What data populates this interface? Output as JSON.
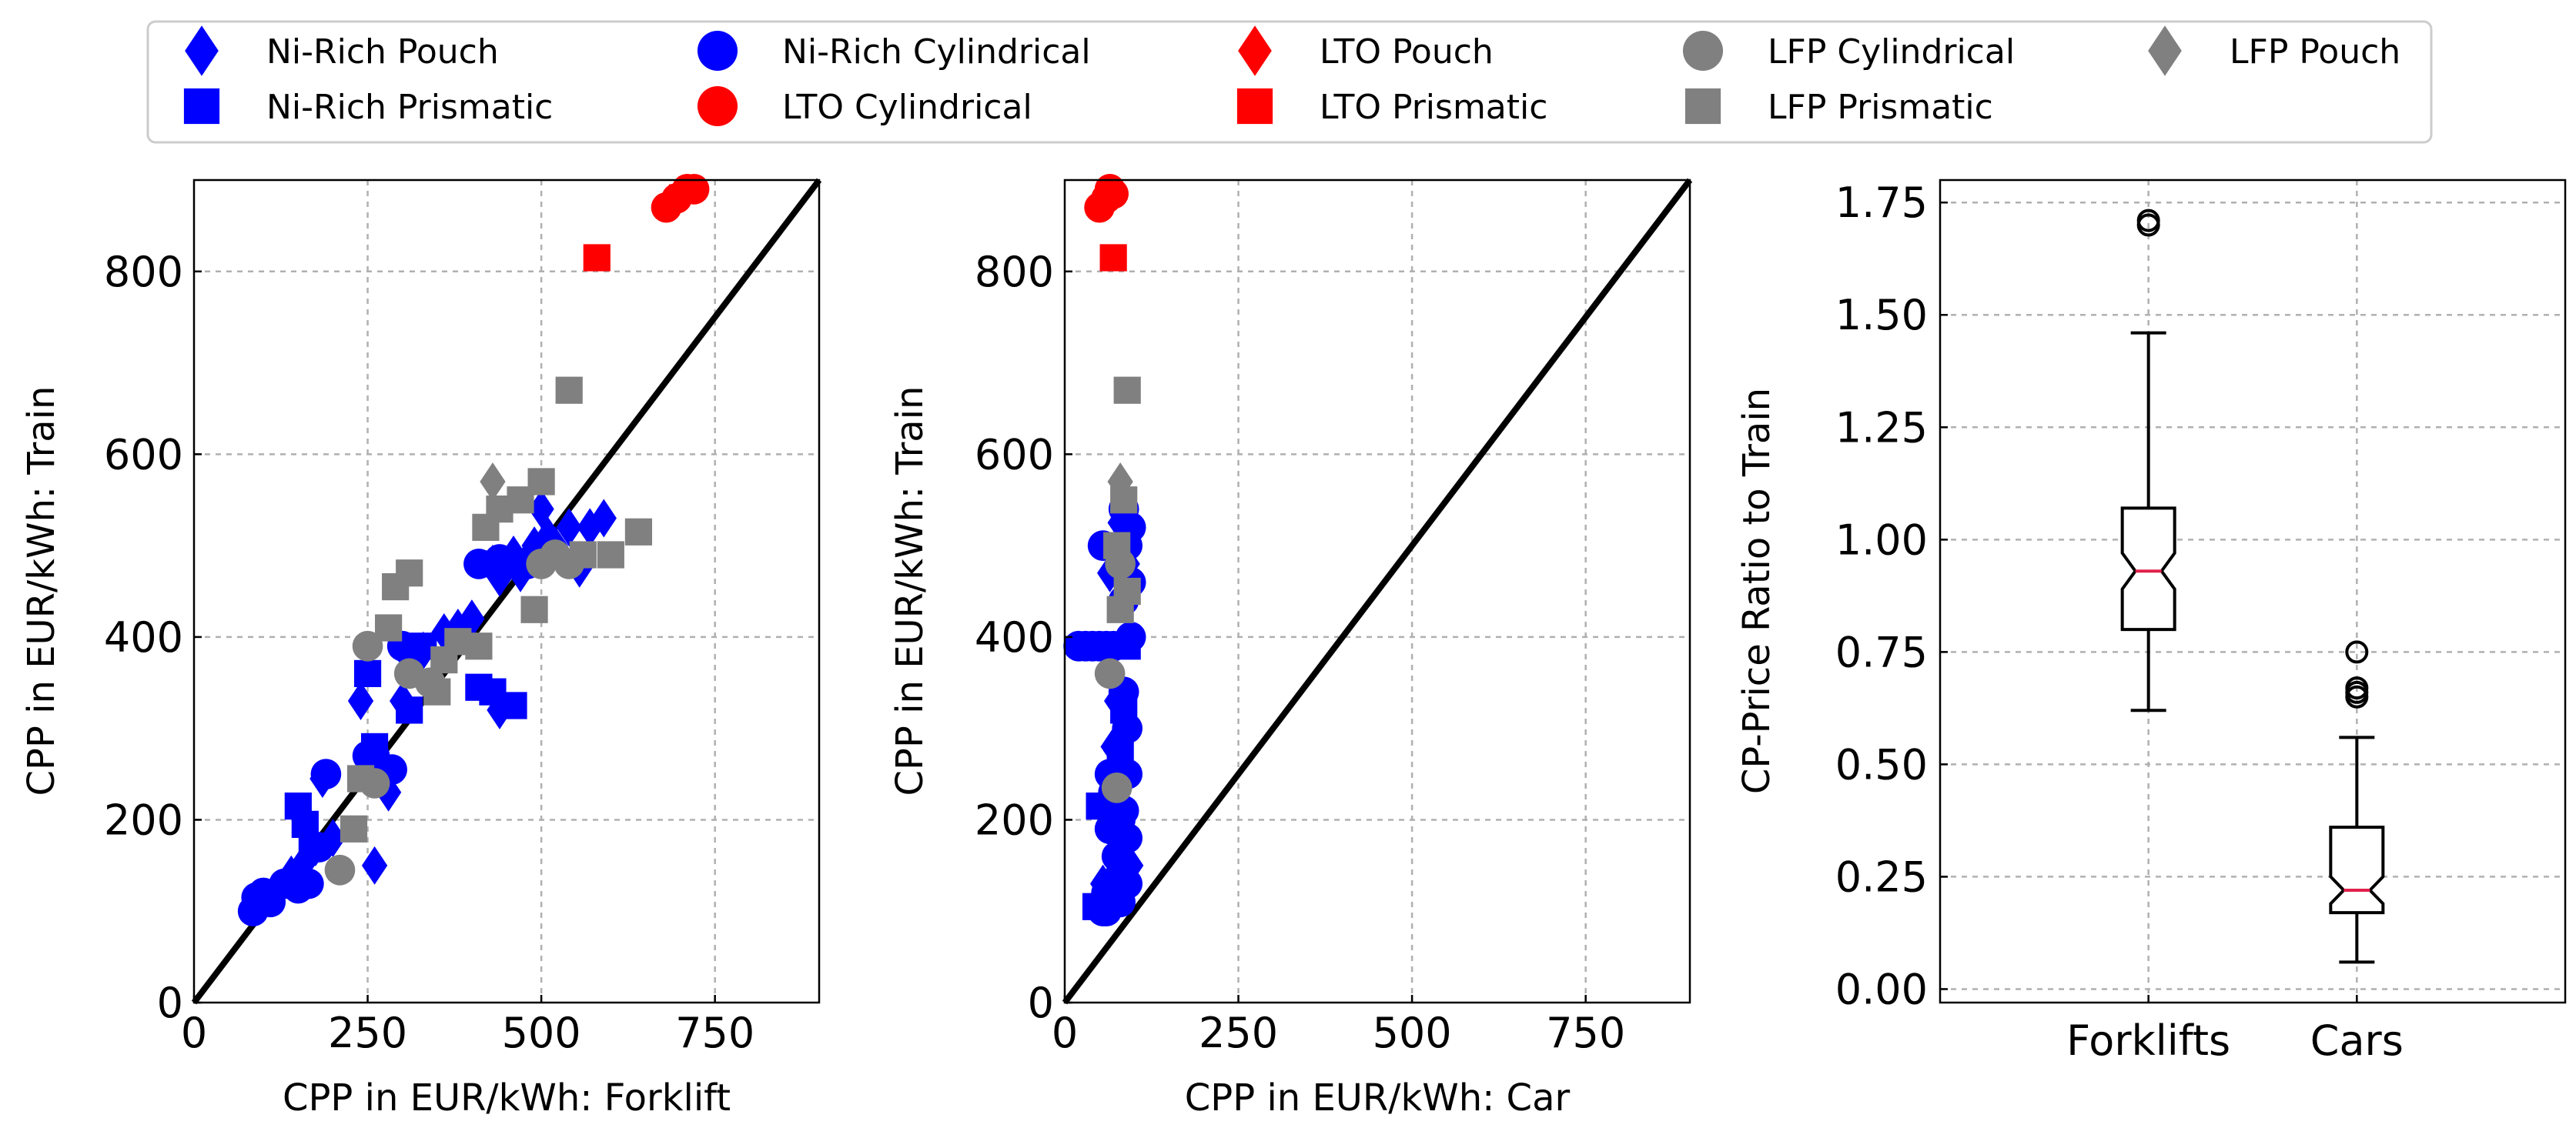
{
  "legend": {
    "items": [
      {
        "label": "Ni-Rich Pouch",
        "marker": "diamond",
        "color": "#0000ff"
      },
      {
        "label": "Ni-Rich Prismatic",
        "marker": "square",
        "color": "#0000ff"
      },
      {
        "label": "Ni-Rich Cylindrical",
        "marker": "circle",
        "color": "#0000ff"
      },
      {
        "label": "LTO Cylindrical",
        "marker": "circle",
        "color": "#ff0000"
      },
      {
        "label": "LTO Pouch",
        "marker": "diamond",
        "color": "#ff0000"
      },
      {
        "label": "LTO Prismatic",
        "marker": "square",
        "color": "#ff0000"
      },
      {
        "label": "LFP Cylindrical",
        "marker": "circle",
        "color": "#808080"
      },
      {
        "label": "LFP Prismatic",
        "marker": "square",
        "color": "#808080"
      },
      {
        "label": "LFP Pouch",
        "marker": "diamond",
        "color": "#808080"
      }
    ]
  },
  "chart_data": [
    {
      "type": "scatter",
      "xlabel": "CPP in EUR/kWh: Forklift",
      "ylabel": "CPP in EUR/kWh: Train",
      "xlim": [
        0,
        900
      ],
      "ylim": [
        0,
        900
      ],
      "xticks": [
        "0",
        "250",
        "500",
        "750"
      ],
      "yticks": [
        "0",
        "200",
        "400",
        "600",
        "800"
      ],
      "grid": true,
      "reference_line": "y = x",
      "series": [
        {
          "name": "Ni-Rich Pouch",
          "points": [
            [
              95,
              115
            ],
            [
              140,
              140
            ],
            [
              160,
              155
            ],
            [
              175,
              170
            ],
            [
              185,
              245
            ],
            [
              200,
              180
            ],
            [
              240,
              330
            ],
            [
              260,
              150
            ],
            [
              280,
              230
            ],
            [
              300,
              330
            ],
            [
              330,
              385
            ],
            [
              360,
              405
            ],
            [
              380,
              410
            ],
            [
              400,
              420
            ],
            [
              430,
              480
            ],
            [
              440,
              465
            ],
            [
              440,
              320
            ],
            [
              460,
              490
            ],
            [
              470,
              470
            ],
            [
              480,
              485
            ],
            [
              490,
              500
            ],
            [
              500,
              540
            ],
            [
              510,
              510
            ],
            [
              520,
              500
            ],
            [
              540,
              520
            ],
            [
              555,
              475
            ],
            [
              570,
              520
            ],
            [
              590,
              530
            ]
          ]
        },
        {
          "name": "Ni-Rich Prismatic",
          "points": [
            [
              150,
              215
            ],
            [
              160,
              195
            ],
            [
              170,
              170
            ],
            [
              250,
              360
            ],
            [
              260,
              280
            ],
            [
              310,
              320
            ],
            [
              330,
              390
            ],
            [
              410,
              345
            ],
            [
              420,
              480
            ],
            [
              430,
              340
            ],
            [
              460,
              325
            ]
          ]
        },
        {
          "name": "Ni-Rich Cylindrical",
          "points": [
            [
              85,
              100
            ],
            [
              90,
              115
            ],
            [
              100,
              120
            ],
            [
              110,
              110
            ],
            [
              130,
              130
            ],
            [
              150,
              125
            ],
            [
              165,
              130
            ],
            [
              180,
              170
            ],
            [
              190,
              250
            ],
            [
              250,
              270
            ],
            [
              260,
              270
            ],
            [
              285,
              255
            ],
            [
              300,
              390
            ],
            [
              310,
              385
            ],
            [
              410,
              480
            ],
            [
              440,
              485
            ],
            [
              480,
              480
            ],
            [
              510,
              500
            ],
            [
              520,
              490
            ]
          ]
        },
        {
          "name": "LTO Cylindrical",
          "points": [
            [
              680,
              870
            ],
            [
              695,
              880
            ],
            [
              710,
              890
            ],
            [
              720,
              890
            ]
          ]
        },
        {
          "name": "LTO Pouch",
          "points": [
            [
              685,
              875
            ]
          ]
        },
        {
          "name": "LTO Prismatic",
          "points": [
            [
              580,
              815
            ]
          ]
        },
        {
          "name": "LFP Cylindrical",
          "points": [
            [
              210,
              145
            ],
            [
              250,
              390
            ],
            [
              260,
              240
            ],
            [
              310,
              360
            ],
            [
              340,
              350
            ],
            [
              500,
              480
            ],
            [
              520,
              490
            ],
            [
              540,
              480
            ]
          ]
        },
        {
          "name": "LFP Prismatic",
          "points": [
            [
              230,
              190
            ],
            [
              240,
              245
            ],
            [
              280,
              410
            ],
            [
              290,
              455
            ],
            [
              310,
              470
            ],
            [
              350,
              340
            ],
            [
              360,
              375
            ],
            [
              380,
              395
            ],
            [
              410,
              390
            ],
            [
              420,
              520
            ],
            [
              440,
              540
            ],
            [
              470,
              550
            ],
            [
              490,
              430
            ],
            [
              500,
              570
            ],
            [
              540,
              670
            ],
            [
              560,
              490
            ],
            [
              600,
              490
            ],
            [
              640,
              515
            ]
          ]
        },
        {
          "name": "LFP Pouch",
          "points": [
            [
              430,
              570
            ]
          ]
        }
      ]
    },
    {
      "type": "scatter",
      "xlabel": "CPP in EUR/kWh: Car",
      "ylabel": "CPP in EUR/kWh: Train",
      "xlim": [
        0,
        900
      ],
      "ylim": [
        0,
        900
      ],
      "xticks": [
        "0",
        "250",
        "500",
        "750"
      ],
      "yticks": [
        "0",
        "200",
        "400",
        "600",
        "800"
      ],
      "grid": true,
      "reference_line": "y = x",
      "series": [
        {
          "name": "Ni-Rich Pouch",
          "points": [
            [
              55,
              130
            ],
            [
              65,
              470
            ],
            [
              70,
              280
            ],
            [
              75,
              330
            ],
            [
              80,
              525
            ],
            [
              85,
              160
            ],
            [
              90,
              480
            ],
            [
              95,
              150
            ]
          ]
        },
        {
          "name": "Ni-Rich Prismatic",
          "points": [
            [
              45,
              105
            ],
            [
              50,
              215
            ],
            [
              80,
              275
            ],
            [
              85,
              320
            ],
            [
              90,
              390
            ]
          ]
        },
        {
          "name": "Ni-Rich Cylindrical",
          "points": [
            [
              20,
              390
            ],
            [
              30,
              390
            ],
            [
              40,
              390
            ],
            [
              50,
              390
            ],
            [
              55,
              500
            ],
            [
              55,
              100
            ],
            [
              60,
              390
            ],
            [
              60,
              120
            ],
            [
              65,
              250
            ],
            [
              70,
              390
            ],
            [
              70,
              230
            ],
            [
              75,
              245
            ],
            [
              75,
              160
            ],
            [
              80,
              200
            ],
            [
              80,
              140
            ],
            [
              85,
              340
            ],
            [
              85,
              440
            ],
            [
              85,
              540
            ],
            [
              90,
              500
            ],
            [
              90,
              300
            ],
            [
              90,
              180
            ],
            [
              90,
              130
            ],
            [
              95,
              400
            ],
            [
              95,
              460
            ],
            [
              95,
              520
            ],
            [
              90,
              250
            ],
            [
              85,
              210
            ],
            [
              80,
              110
            ],
            [
              65,
              190
            ],
            [
              60,
              100
            ]
          ]
        },
        {
          "name": "LTO Cylindrical",
          "points": [
            [
              50,
              870
            ],
            [
              60,
              880
            ],
            [
              65,
              890
            ],
            [
              70,
              885
            ]
          ]
        },
        {
          "name": "LTO Pouch",
          "points": [
            [
              55,
              875
            ]
          ]
        },
        {
          "name": "LTO Prismatic",
          "points": [
            [
              70,
              815
            ]
          ]
        },
        {
          "name": "LFP Cylindrical",
          "points": [
            [
              65,
              360
            ],
            [
              75,
              235
            ],
            [
              80,
              480
            ]
          ]
        },
        {
          "name": "LFP Prismatic",
          "points": [
            [
              75,
              500
            ],
            [
              80,
              430
            ],
            [
              85,
              550
            ],
            [
              90,
              670
            ],
            [
              90,
              450
            ]
          ]
        },
        {
          "name": "LFP Pouch",
          "points": [
            [
              80,
              570
            ]
          ]
        }
      ]
    },
    {
      "type": "boxplot",
      "ylabel": "CP-Price Ratio to Train",
      "ylim": [
        -0.03,
        1.8
      ],
      "yticks": [
        "0.00",
        "0.25",
        "0.50",
        "0.75",
        "1.00",
        "1.25",
        "1.50",
        "1.75"
      ],
      "categories": [
        "Forklifts",
        "Cars"
      ],
      "grid": true,
      "boxes": [
        {
          "name": "Forklifts",
          "whisker_low": 0.62,
          "q1": 0.8,
          "median": 0.93,
          "q3": 1.07,
          "whisker_high": 1.46,
          "notch_low": 0.89,
          "notch_high": 0.97,
          "outliers": [
            1.7,
            1.71
          ]
        },
        {
          "name": "Cars",
          "whisker_low": 0.06,
          "q1": 0.17,
          "median": 0.22,
          "q3": 0.36,
          "whisker_high": 0.56,
          "notch_low": 0.19,
          "notch_high": 0.25,
          "outliers": [
            0.65,
            0.66,
            0.67,
            0.75
          ]
        }
      ]
    }
  ]
}
